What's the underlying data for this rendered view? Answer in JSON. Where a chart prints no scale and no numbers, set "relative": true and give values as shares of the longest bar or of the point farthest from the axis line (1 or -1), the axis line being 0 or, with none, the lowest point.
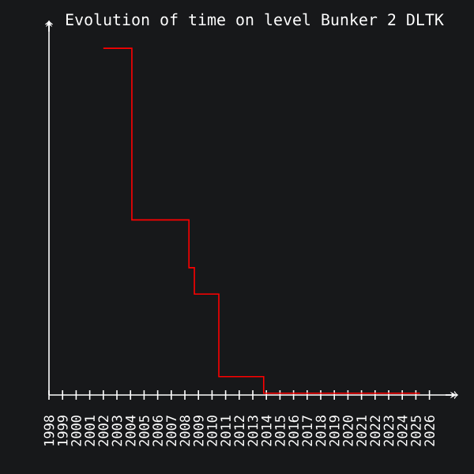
{
  "chart_data": {
    "type": "step",
    "title": "Evolution of time on level Bunker 2 DLTK",
    "relative": true,
    "x": [
      2002,
      2004.1,
      2008.3,
      2008.7,
      2010.5,
      2013.8,
      2025.3
    ],
    "values": [
      1,
      0.505,
      0.367,
      0.291,
      0.053,
      0.005,
      0.005
    ],
    "color": "#ff0000",
    "xlim": [
      1998,
      2028
    ],
    "xticks": [
      1998,
      1999,
      2000,
      2001,
      2002,
      2003,
      2004,
      2005,
      2006,
      2007,
      2008,
      2009,
      2010,
      2011,
      2012,
      2013,
      2014,
      2015,
      2016,
      2017,
      2018,
      2019,
      2020,
      2021,
      2022,
      2023,
      2024,
      2025,
      2026
    ]
  }
}
